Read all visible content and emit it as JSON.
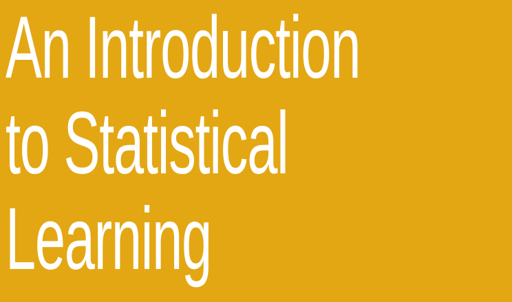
{
  "cover": {
    "title_lines": [
      "An Introduction",
      "to Statistical",
      "Learning"
    ],
    "background_color": "#E3A714",
    "text_color": "#FFFFFF"
  }
}
